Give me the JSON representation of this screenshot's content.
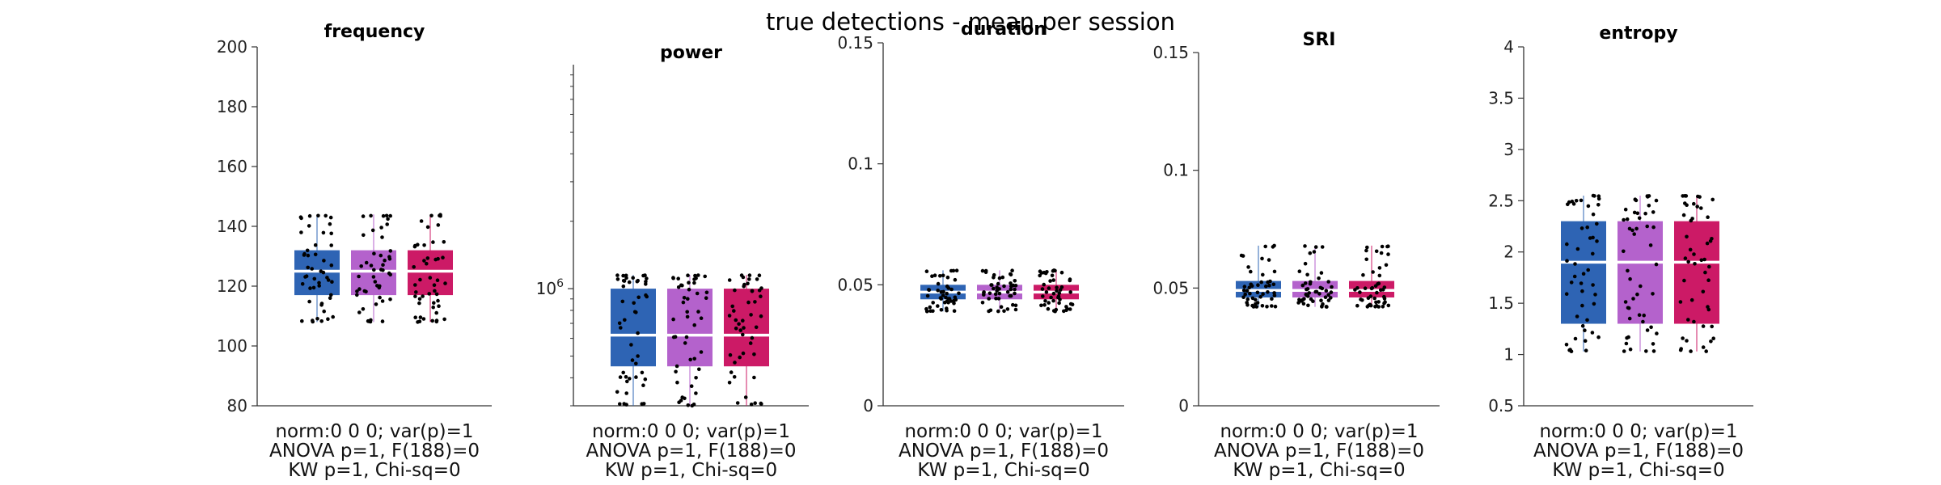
{
  "figure": {
    "title": "true detections - mean per session"
  },
  "colors": {
    "group_1": "#2e64b4",
    "group_2": "#b462cc",
    "group_3": "#cc1a66",
    "median_line": "#ffffff",
    "points": "#000000",
    "axis": "#333333"
  },
  "chart_data": [
    {
      "type": "box",
      "title": "frequency",
      "groups": [
        "group_1",
        "group_2",
        "group_3"
      ],
      "yscale": "linear",
      "ylim": [
        80,
        200
      ],
      "yticks": [
        80,
        100,
        120,
        140,
        160,
        180,
        200
      ],
      "yticklabels": [
        "80",
        "100",
        "120",
        "140",
        "160",
        "180",
        "200"
      ],
      "box": {
        "q1": 117,
        "median": 125,
        "q3": 132,
        "whisker_low": 108,
        "whisker_high": 144
      },
      "stats_text": [
        "norm:0  0  0; var(p)=1",
        "ANOVA p=1, F(188)=0",
        "KW p=1, Chi-sq=0"
      ]
    },
    {
      "type": "box",
      "title": "power",
      "groups": [
        "group_1",
        "group_2",
        "group_3"
      ],
      "yscale": "log",
      "ylim": [
        300000,
        10000000
      ],
      "yticks": [
        1000000
      ],
      "yticklabels": [
        "10^6"
      ],
      "box": {
        "q1": 450000,
        "median": 620000,
        "q3": 1000000,
        "whisker_low": 300000,
        "whisker_high": 1150000
      },
      "stats_text": [
        "norm:0  0  0; var(p)=1",
        "ANOVA p=1, F(188)=0",
        "KW p=1, Chi-sq=0"
      ]
    },
    {
      "type": "box",
      "title": "duration",
      "groups": [
        "group_1",
        "group_2",
        "group_3"
      ],
      "yscale": "linear",
      "ylim": [
        0,
        0.15
      ],
      "yticks": [
        0,
        0.05,
        0.1,
        0.15
      ],
      "yticklabels": [
        "0",
        "0.05",
        "0.1",
        "0.15"
      ],
      "box": {
        "q1": 0.044,
        "median": 0.047,
        "q3": 0.05,
        "whisker_low": 0.039,
        "whisker_high": 0.056
      },
      "stats_text": [
        "norm:0  0  0; var(p)=1",
        "ANOVA p=1, F(188)=0",
        "KW p=1, Chi-sq=0"
      ]
    },
    {
      "type": "box",
      "title": "SRI",
      "groups": [
        "group_1",
        "group_2",
        "group_3"
      ],
      "yscale": "linear",
      "ylim": [
        0,
        0.15
      ],
      "yticks": [
        0,
        0.05,
        0.1,
        0.15
      ],
      "yticklabels": [
        "0",
        "0.05",
        "0.1",
        "0.15"
      ],
      "box": {
        "q1": 0.046,
        "median": 0.049,
        "q3": 0.053,
        "whisker_low": 0.042,
        "whisker_high": 0.068
      },
      "stats_text": [
        "norm:0  0  0; var(p)=1",
        "ANOVA p=1, F(188)=0",
        "KW p=1, Chi-sq=0"
      ]
    },
    {
      "type": "box",
      "title": "entropy",
      "groups": [
        "group_1",
        "group_2",
        "group_3"
      ],
      "yscale": "linear",
      "ylim": [
        0.5,
        4
      ],
      "yticks": [
        0.5,
        1,
        1.5,
        2,
        2.5,
        3,
        3.5,
        4
      ],
      "yticklabels": [
        "0.5",
        "1",
        "1.5",
        "2",
        "2.5",
        "3",
        "3.5",
        "4"
      ],
      "box": {
        "q1": 1.3,
        "median": 1.9,
        "q3": 2.3,
        "whisker_low": 1.03,
        "whisker_high": 2.55
      },
      "stats_text": [
        "norm:0  0  0; var(p)=1",
        "ANOVA p=1, F(188)=0",
        "KW p=1, Chi-sq=0"
      ]
    }
  ]
}
